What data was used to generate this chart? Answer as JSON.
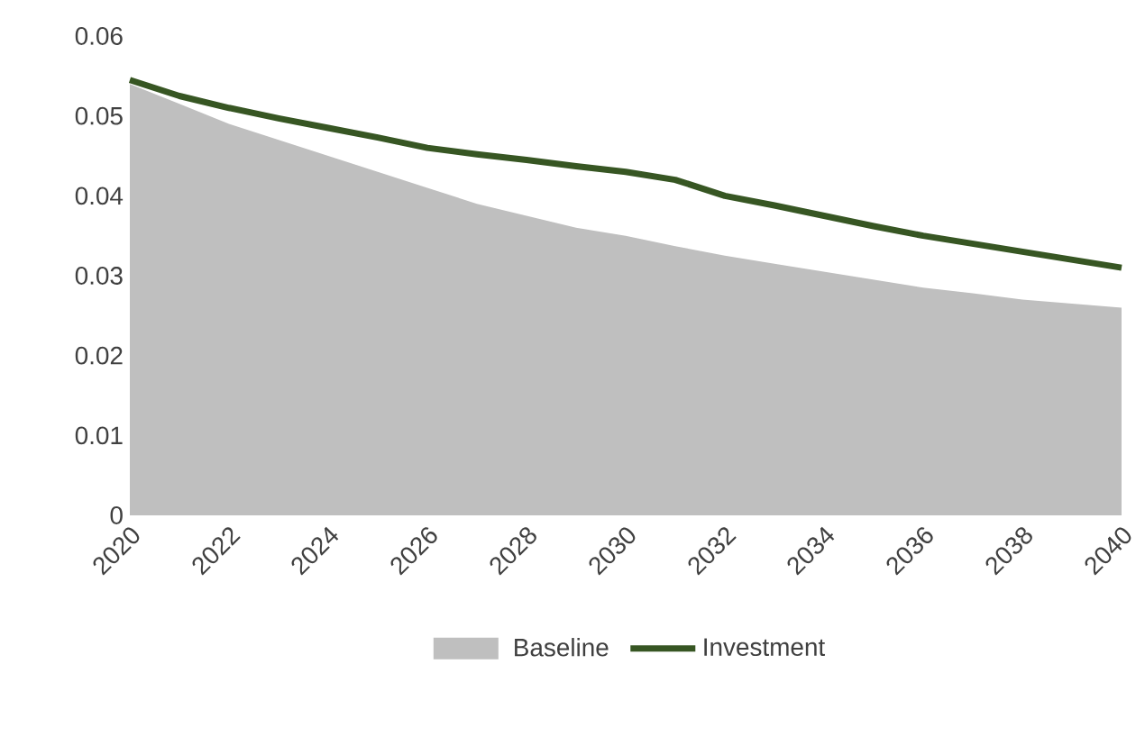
{
  "chart_data": {
    "type": "area",
    "x": [
      2020,
      2021,
      2022,
      2023,
      2024,
      2025,
      2026,
      2027,
      2028,
      2029,
      2030,
      2031,
      2032,
      2033,
      2034,
      2035,
      2036,
      2037,
      2038,
      2039,
      2040
    ],
    "series": [
      {
        "name": "Baseline",
        "color": "#bfbfbf",
        "values": [
          0.054,
          0.0515,
          0.049,
          0.047,
          0.045,
          0.043,
          0.041,
          0.039,
          0.0375,
          0.036,
          0.035,
          0.0337,
          0.0325,
          0.0315,
          0.0305,
          0.0295,
          0.0285,
          0.0278,
          0.027,
          0.0265,
          0.026
        ]
      },
      {
        "name": "Investment",
        "type": "line",
        "color": "#375623",
        "values": [
          0.0545,
          0.0525,
          0.051,
          0.0497,
          0.0485,
          0.0473,
          0.046,
          0.0452,
          0.0445,
          0.0437,
          0.043,
          0.042,
          0.04,
          0.0388,
          0.0375,
          0.0362,
          0.035,
          0.034,
          0.033,
          0.032,
          0.031
        ]
      }
    ],
    "xlim": [
      2020,
      2040
    ],
    "ylim": [
      0,
      0.06
    ],
    "xticks": [
      2020,
      2022,
      2024,
      2026,
      2028,
      2030,
      2032,
      2034,
      2036,
      2038,
      2040
    ],
    "yticks": [
      0,
      0.01,
      0.02,
      0.03,
      0.04,
      0.05,
      0.06
    ],
    "legend": "bottom",
    "grid": false
  }
}
